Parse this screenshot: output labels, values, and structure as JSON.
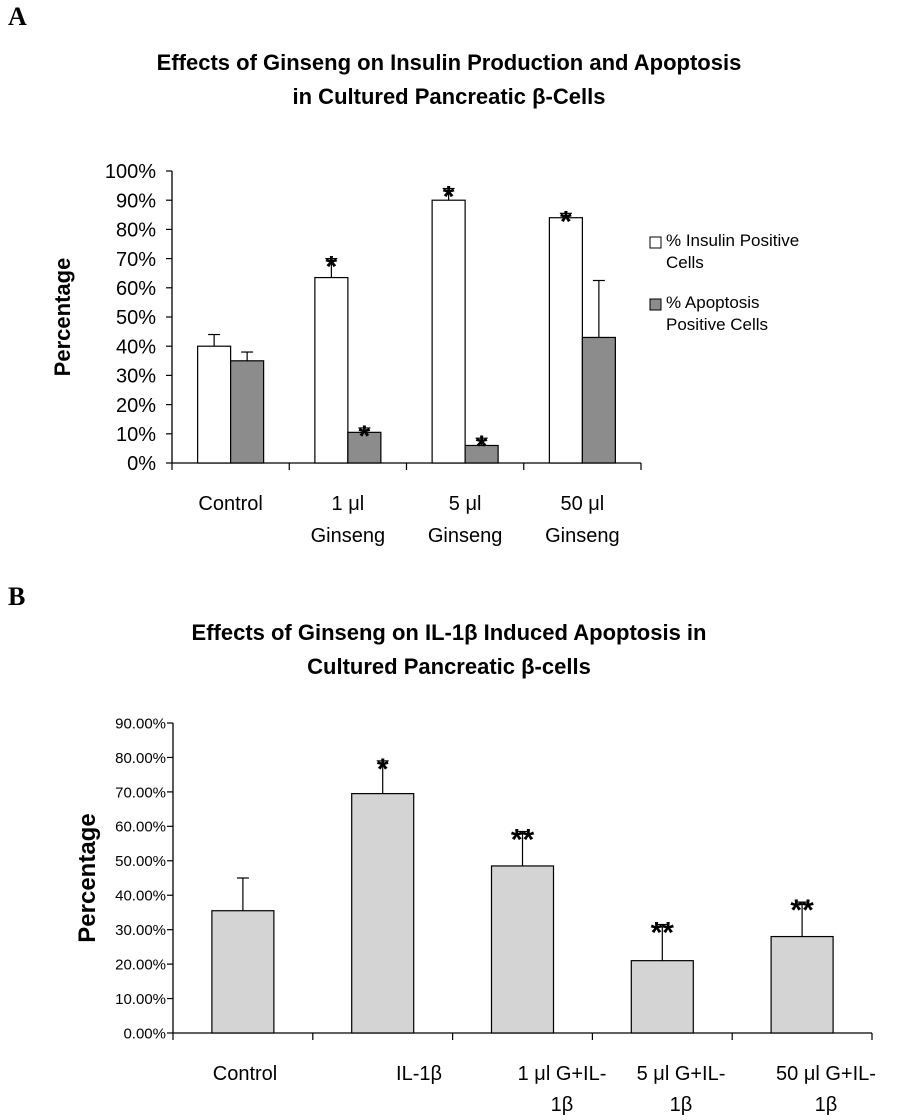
{
  "panels": [
    {
      "letter": "A",
      "chart_data": {
        "type": "bar",
        "title_lines": [
          "Effects of Ginseng on Insulin Production and Apoptosis",
          "in Cultured Pancreatic β-Cells"
        ],
        "ylabel": "Percentage",
        "xlabel": "",
        "ylim": [
          0,
          100
        ],
        "yticks": [
          "0%",
          "10%",
          "20%",
          "30%",
          "40%",
          "50%",
          "60%",
          "70%",
          "80%",
          "90%",
          "100%"
        ],
        "categories": [
          [
            "Control"
          ],
          [
            "1 μl",
            "Ginseng"
          ],
          [
            "5 μl",
            "Ginseng"
          ],
          [
            "50 μl",
            "Ginseng"
          ]
        ],
        "series": [
          {
            "name_lines": [
              "% Insulin Positive",
              "Cells"
            ],
            "color": "#ffffff",
            "values": [
              40,
              63.5,
              90,
              84
            ],
            "errors": [
              4,
              6.5,
              4,
              1.5
            ],
            "marks": [
              "",
              "*",
              "*",
              "*"
            ]
          },
          {
            "name_lines": [
              "% Apoptosis",
              "Positive Cells"
            ],
            "color": "#8c8c8c",
            "values": [
              35,
              10.5,
              6,
              43
            ],
            "errors": [
              3,
              1.5,
              2.5,
              19.5
            ],
            "marks": [
              "",
              "*",
              "*",
              ""
            ]
          }
        ],
        "legend_position": "right",
        "grid": false
      }
    },
    {
      "letter": "B",
      "chart_data": {
        "type": "bar",
        "title_lines": [
          "Effects of Ginseng on IL-1β Induced Apoptosis in",
          "Cultured Pancreatic β-cells"
        ],
        "ylabel": "Percentage",
        "xlabel": "",
        "ylim": [
          0,
          90
        ],
        "yticks": [
          "0.00%",
          "10.00%",
          "20.00%",
          "30.00%",
          "40.00%",
          "50.00%",
          "60.00%",
          "70.00%",
          "80.00%",
          "90.00%"
        ],
        "categories": [
          [
            "Control"
          ],
          [
            "IL-1β"
          ],
          [
            "1 μl G+IL-",
            "1β"
          ],
          [
            "5 μl G+IL-",
            "1β"
          ],
          [
            "50 μl G+IL-",
            "1β"
          ]
        ],
        "series": [
          {
            "color": "#d4d4d4",
            "values": [
              35.5,
              69.5,
              48.5,
              21,
              28
            ],
            "errors": [
              9.5,
              9.5,
              10,
              10.5,
              10
            ],
            "marks": [
              "",
              "*",
              "**",
              "**",
              "**"
            ]
          }
        ],
        "grid": false
      }
    }
  ]
}
